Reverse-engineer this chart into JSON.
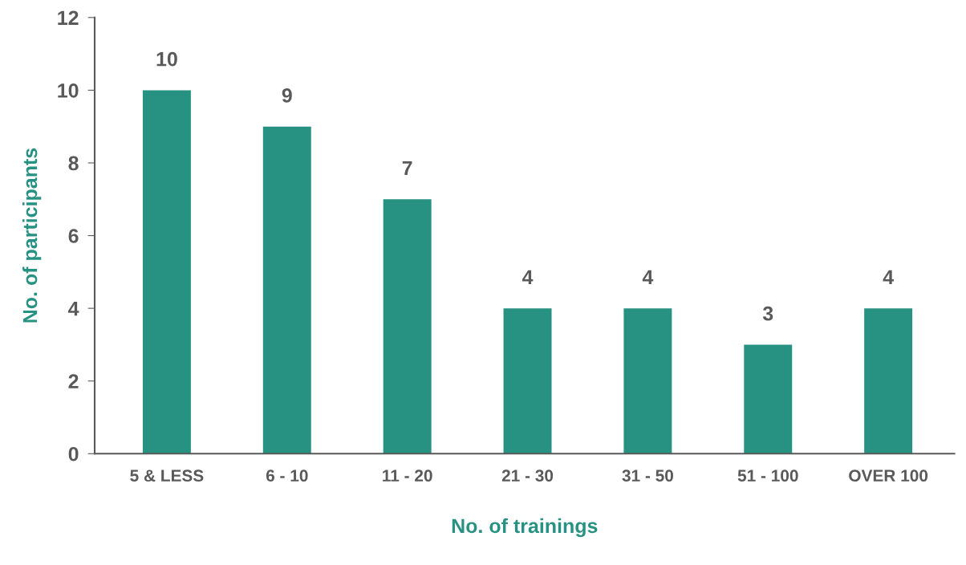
{
  "chart_data": {
    "type": "bar",
    "xlabel": "No. of trainings",
    "ylabel": "No. of participants",
    "categories": [
      "5 & LESS",
      "6 - 10",
      "11 - 20",
      "21 - 30",
      "31 - 50",
      "51 - 100",
      "OVER 100"
    ],
    "values": [
      10,
      9,
      7,
      4,
      4,
      3,
      4
    ],
    "color": "#279282",
    "ylim": [
      0,
      12
    ],
    "yticks": [
      0,
      2,
      4,
      6,
      8,
      10,
      12
    ],
    "grid": false,
    "legend": false,
    "data_labels": true
  }
}
